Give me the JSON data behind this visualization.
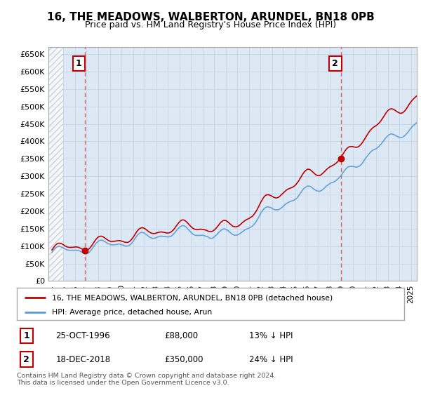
{
  "title": "16, THE MEADOWS, WALBERTON, ARUNDEL, BN18 0PB",
  "subtitle": "Price paid vs. HM Land Registry's House Price Index (HPI)",
  "legend_line1": "16, THE MEADOWS, WALBERTON, ARUNDEL, BN18 0PB (detached house)",
  "legend_line2": "HPI: Average price, detached house, Arun",
  "annotation1_label": "1",
  "annotation1_date": "25-OCT-1996",
  "annotation1_price": "£88,000",
  "annotation1_hpi": "13% ↓ HPI",
  "annotation2_label": "2",
  "annotation2_date": "18-DEC-2018",
  "annotation2_price": "£350,000",
  "annotation2_hpi": "24% ↓ HPI",
  "footnote": "Contains HM Land Registry data © Crown copyright and database right 2024.\nThis data is licensed under the Open Government Licence v3.0.",
  "sale1_year": 1996.82,
  "sale1_value": 88000,
  "sale2_year": 2018.96,
  "sale2_value": 350000,
  "hpi_color": "#5b9bd5",
  "sale_color": "#c00000",
  "vline_color": "#e06060",
  "grid_color": "#c8d8e8",
  "bg_color": "#ffffff",
  "plot_bg_color": "#dce9f5",
  "ylim": [
    0,
    670000
  ],
  "xlim_start": 1993.7,
  "xlim_end": 2025.5,
  "title_fontsize": 11,
  "subtitle_fontsize": 9
}
